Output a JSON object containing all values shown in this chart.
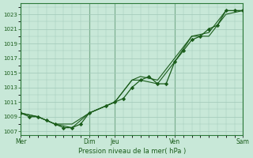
{
  "title": "Pression niveau de la mer( hPa )",
  "bg_color": "#c8e8d8",
  "plot_bg_color": "#c8e8d8",
  "grid_color": "#a0c8b8",
  "line_color": "#1a5c1a",
  "marker_color": "#1a5c1a",
  "ylim": [
    1006.5,
    1024.5
  ],
  "yticks": [
    1007,
    1009,
    1011,
    1013,
    1015,
    1017,
    1019,
    1021,
    1023
  ],
  "xtick_labels": [
    "Mer",
    "Dim",
    "Jeu",
    "Ven",
    "Sam"
  ],
  "xtick_positions": [
    0,
    4,
    5.5,
    9,
    13
  ],
  "vline_positions": [
    0,
    4,
    5.5,
    9,
    13
  ],
  "series1_x": [
    0,
    0.5,
    1,
    1.5,
    2,
    2.5,
    3,
    3.5,
    4,
    5,
    5.5,
    6,
    6.5,
    7,
    7.5,
    8,
    8.5,
    9,
    9.5,
    10,
    10.5,
    11,
    11.5,
    12,
    12.5,
    13
  ],
  "series1_y": [
    1009.5,
    1009.0,
    1009.0,
    1008.5,
    1008.0,
    1007.5,
    1007.5,
    1008.0,
    1009.5,
    1010.5,
    1011.0,
    1011.5,
    1013.0,
    1014.0,
    1014.5,
    1013.5,
    1013.5,
    1016.5,
    1018.0,
    1019.5,
    1020.0,
    1021.0,
    1021.5,
    1023.5,
    1023.5,
    1023.5
  ],
  "series2_x": [
    0,
    1,
    2,
    3,
    4,
    5.5,
    6.5,
    7,
    8,
    9,
    10,
    11,
    12,
    13
  ],
  "series2_y": [
    1009.5,
    1009.0,
    1008.0,
    1008.0,
    1009.5,
    1011.0,
    1014.0,
    1014.5,
    1014.0,
    1017.0,
    1020.0,
    1020.5,
    1023.5,
    1023.5
  ],
  "series3_x": [
    0,
    1,
    2,
    3,
    4,
    5.5,
    6.5,
    7,
    8,
    9,
    10,
    11,
    12,
    13
  ],
  "series3_y": [
    1009.5,
    1009.0,
    1008.0,
    1007.5,
    1009.5,
    1011.0,
    1014.0,
    1014.0,
    1013.5,
    1016.5,
    1020.0,
    1020.0,
    1023.0,
    1023.5
  ]
}
